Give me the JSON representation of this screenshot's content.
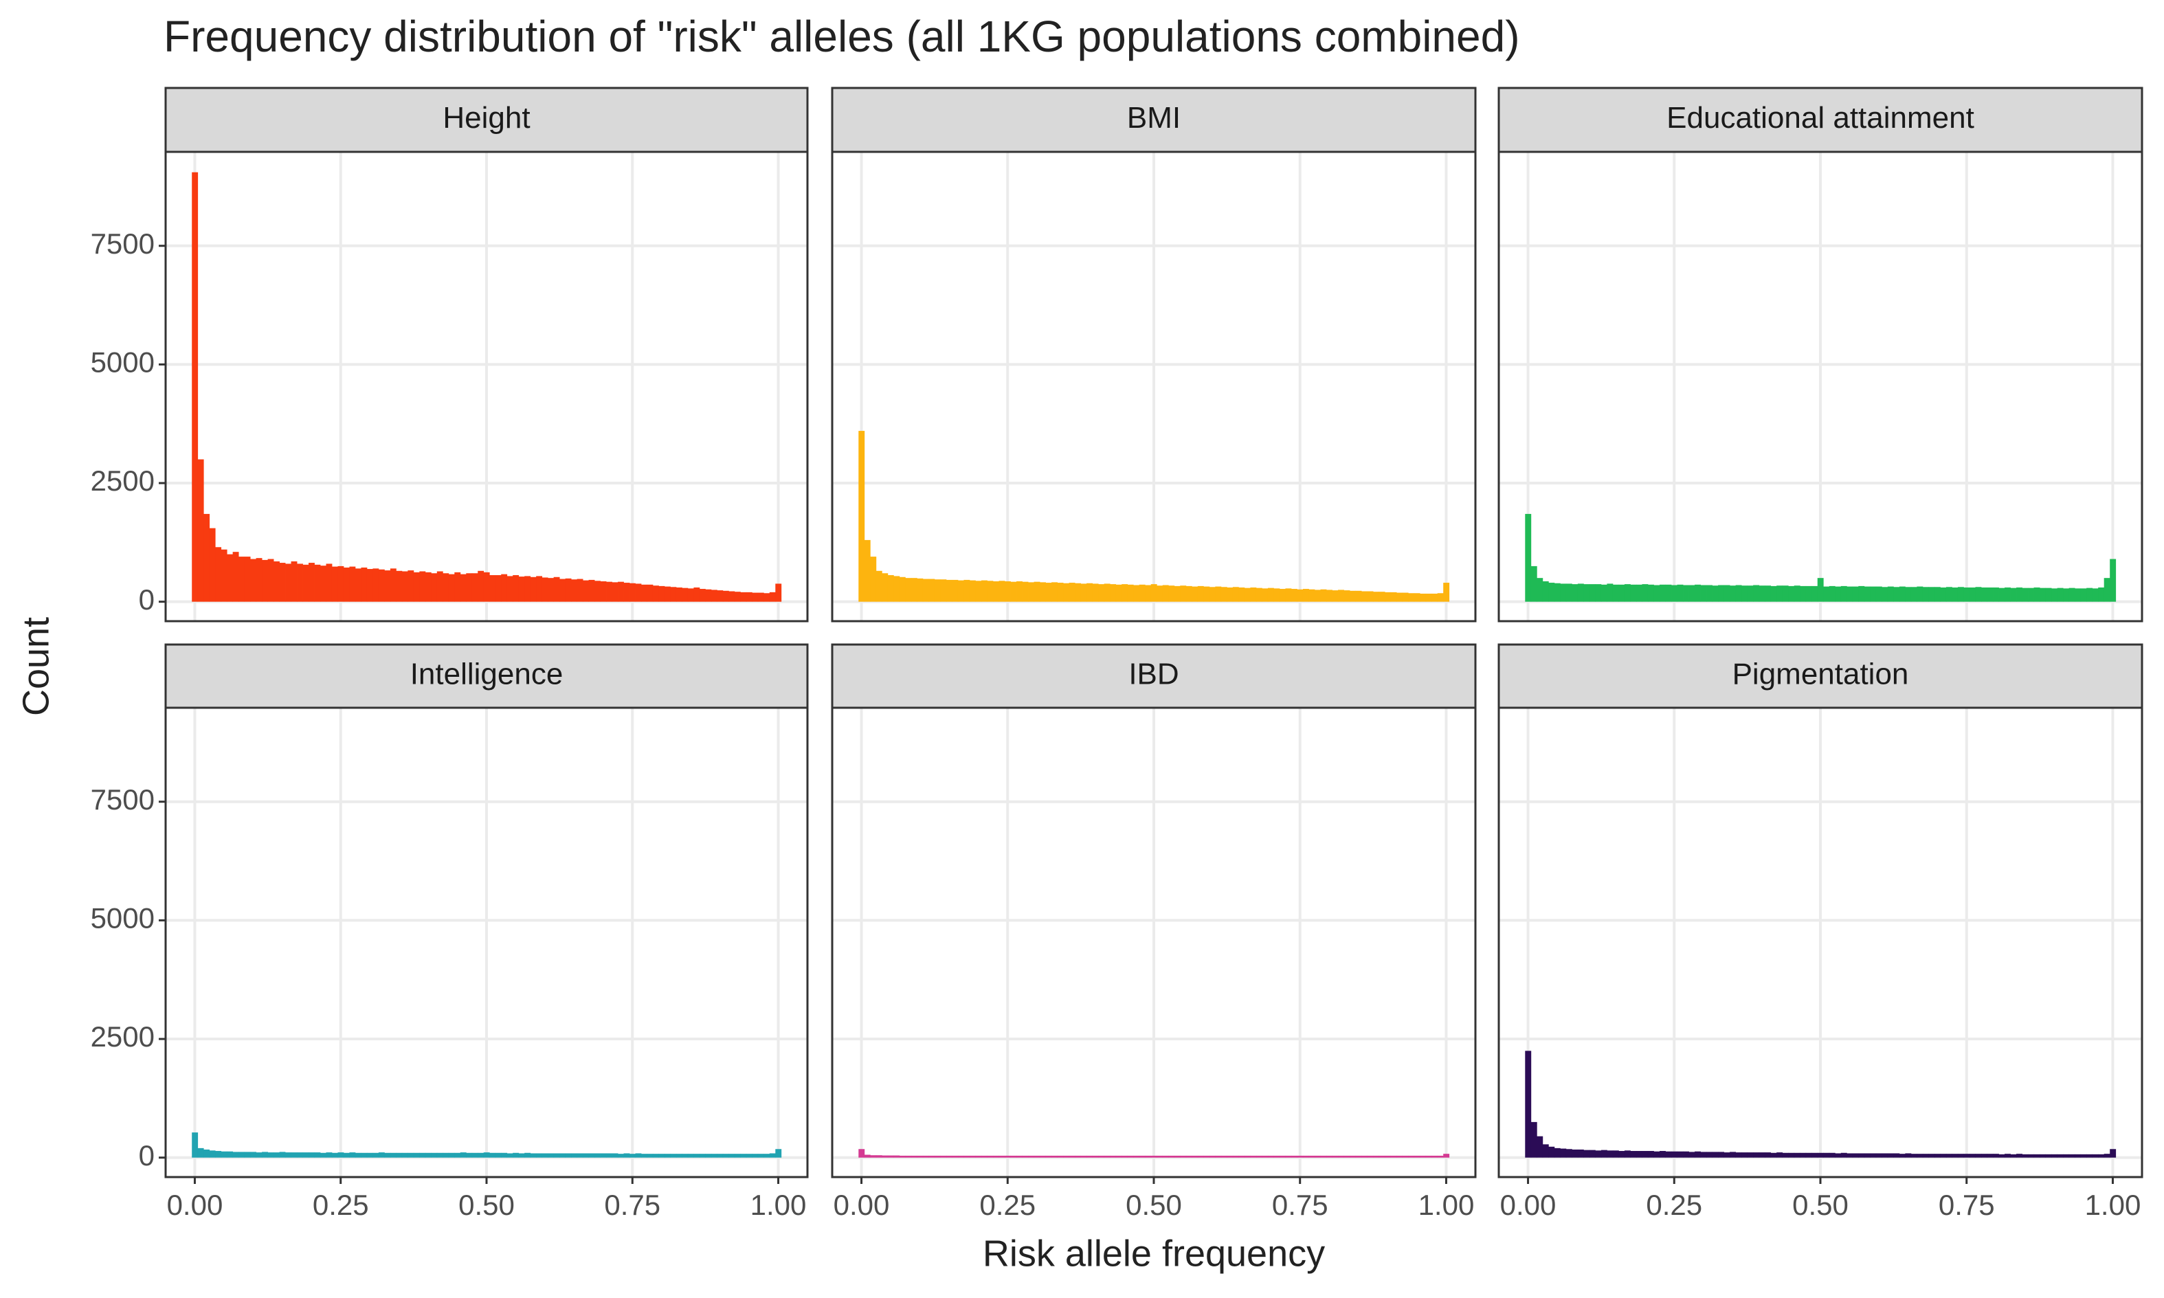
{
  "chart_data": {
    "type": "histogram",
    "title": "Frequency distribution of \"risk\" alleles (all 1KG populations combined)",
    "xlabel": "Risk allele frequency",
    "ylabel": "Count",
    "xlim": [
      -0.05,
      1.05
    ],
    "ylim": [
      -410,
      9480
    ],
    "xticks": [
      {
        "value": 0,
        "label": "0.00"
      },
      {
        "value": 0.25,
        "label": "0.25"
      },
      {
        "value": 0.5,
        "label": "0.50"
      },
      {
        "value": 0.75,
        "label": "0.75"
      },
      {
        "value": 1,
        "label": "1.00"
      }
    ],
    "yticks": [
      0,
      2500,
      5000,
      7500
    ],
    "grid": true,
    "bins": [
      -0.005,
      0.005,
      0.015,
      0.025,
      0.035,
      0.045,
      0.055,
      0.065,
      0.075,
      0.085,
      0.095,
      0.105,
      0.115,
      0.125,
      0.135,
      0.145,
      0.155,
      0.165,
      0.175,
      0.185,
      0.195,
      0.205,
      0.215,
      0.225,
      0.235,
      0.245,
      0.255,
      0.265,
      0.275,
      0.285,
      0.295,
      0.305,
      0.315,
      0.325,
      0.335,
      0.345,
      0.355,
      0.365,
      0.375,
      0.385,
      0.395,
      0.405,
      0.415,
      0.425,
      0.435,
      0.445,
      0.455,
      0.465,
      0.475,
      0.485,
      0.495,
      0.505,
      0.515,
      0.525,
      0.535,
      0.545,
      0.555,
      0.565,
      0.575,
      0.585,
      0.595,
      0.605,
      0.615,
      0.625,
      0.635,
      0.645,
      0.655,
      0.665,
      0.675,
      0.685,
      0.695,
      0.705,
      0.715,
      0.725,
      0.735,
      0.745,
      0.755,
      0.765,
      0.775,
      0.785,
      0.795,
      0.805,
      0.815,
      0.825,
      0.835,
      0.845,
      0.855,
      0.865,
      0.875,
      0.885,
      0.895,
      0.905,
      0.915,
      0.925,
      0.935,
      0.945,
      0.955,
      0.965,
      0.975,
      0.985,
      0.995,
      1.005
    ],
    "panels": [
      {
        "name": "Height",
        "color": "#f83b10",
        "values": [
          9050,
          3000,
          1850,
          1550,
          1150,
          1100,
          1000,
          1050,
          950,
          950,
          900,
          920,
          880,
          900,
          850,
          820,
          800,
          850,
          800,
          780,
          820,
          780,
          760,
          800,
          740,
          750,
          720,
          740,
          700,
          720,
          690,
          700,
          680,
          660,
          700,
          650,
          640,
          660,
          620,
          640,
          620,
          600,
          640,
          600,
          580,
          620,
          580,
          600,
          600,
          650,
          620,
          560,
          560,
          580,
          540,
          560,
          530,
          540,
          520,
          540,
          510,
          500,
          520,
          480,
          490,
          470,
          480,
          450,
          460,
          440,
          430,
          420,
          410,
          420,
          400,
          390,
          380,
          360,
          360,
          340,
          330,
          320,
          310,
          300,
          290,
          280,
          300,
          270,
          260,
          250,
          240,
          230,
          220,
          210,
          200,
          200,
          190,
          190,
          180,
          200,
          380
        ]
      },
      {
        "name": "BMI",
        "color": "#fdb40f",
        "values": [
          3600,
          1300,
          950,
          650,
          600,
          560,
          540,
          520,
          500,
          500,
          490,
          480,
          480,
          470,
          470,
          460,
          460,
          450,
          460,
          450,
          440,
          450,
          440,
          430,
          440,
          430,
          420,
          430,
          420,
          410,
          420,
          410,
          400,
          410,
          400,
          390,
          400,
          390,
          380,
          390,
          380,
          370,
          380,
          370,
          360,
          370,
          360,
          350,
          360,
          350,
          370,
          340,
          350,
          340,
          330,
          340,
          330,
          320,
          330,
          320,
          310,
          320,
          310,
          300,
          310,
          300,
          290,
          300,
          290,
          280,
          290,
          280,
          270,
          280,
          270,
          260,
          270,
          260,
          250,
          260,
          250,
          240,
          250,
          240,
          230,
          230,
          220,
          220,
          210,
          210,
          200,
          200,
          190,
          190,
          180,
          180,
          170,
          170,
          170,
          180,
          400
        ]
      },
      {
        "name": "Educational attainment",
        "color": "#1fba55",
        "values": [
          1850,
          750,
          500,
          430,
          400,
          390,
          380,
          380,
          370,
          380,
          370,
          370,
          370,
          360,
          380,
          360,
          360,
          370,
          360,
          360,
          370,
          360,
          350,
          360,
          360,
          350,
          360,
          350,
          350,
          360,
          350,
          350,
          340,
          350,
          350,
          340,
          350,
          340,
          340,
          350,
          340,
          340,
          330,
          340,
          340,
          330,
          340,
          330,
          330,
          330,
          500,
          320,
          330,
          320,
          330,
          320,
          320,
          330,
          320,
          320,
          320,
          310,
          320,
          310,
          320,
          310,
          310,
          320,
          310,
          310,
          310,
          300,
          310,
          300,
          310,
          300,
          300,
          310,
          300,
          300,
          300,
          290,
          300,
          290,
          300,
          290,
          290,
          300,
          290,
          290,
          280,
          290,
          280,
          290,
          280,
          280,
          290,
          280,
          300,
          500,
          900
        ]
      },
      {
        "name": "Intelligence",
        "color": "#21a3b1",
        "values": [
          530,
          200,
          170,
          150,
          140,
          130,
          130,
          120,
          120,
          120,
          120,
          110,
          120,
          110,
          110,
          120,
          110,
          110,
          110,
          110,
          110,
          110,
          100,
          110,
          100,
          110,
          100,
          110,
          100,
          100,
          100,
          100,
          110,
          100,
          100,
          100,
          100,
          100,
          100,
          100,
          100,
          100,
          100,
          100,
          100,
          100,
          110,
          100,
          100,
          100,
          110,
          100,
          100,
          100,
          90,
          100,
          90,
          100,
          90,
          90,
          90,
          90,
          90,
          90,
          90,
          90,
          90,
          90,
          90,
          90,
          90,
          90,
          90,
          80,
          90,
          80,
          90,
          80,
          80,
          80,
          80,
          80,
          80,
          80,
          80,
          80,
          80,
          80,
          80,
          80,
          80,
          80,
          80,
          80,
          80,
          80,
          80,
          80,
          80,
          90,
          180
        ]
      },
      {
        "name": "IBD",
        "color": "#d43a92",
        "values": [
          180,
          60,
          50,
          50,
          45,
          45,
          45,
          40,
          40,
          40,
          40,
          40,
          40,
          40,
          40,
          40,
          40,
          40,
          40,
          40,
          40,
          40,
          40,
          40,
          40,
          40,
          40,
          40,
          40,
          40,
          40,
          40,
          40,
          40,
          40,
          40,
          40,
          40,
          40,
          40,
          40,
          40,
          40,
          40,
          40,
          40,
          40,
          40,
          40,
          40,
          40,
          40,
          40,
          40,
          40,
          40,
          40,
          40,
          40,
          40,
          40,
          40,
          40,
          40,
          40,
          40,
          40,
          40,
          40,
          40,
          40,
          40,
          40,
          40,
          40,
          40,
          40,
          40,
          40,
          40,
          40,
          40,
          40,
          40,
          40,
          40,
          40,
          40,
          40,
          40,
          40,
          40,
          40,
          40,
          40,
          40,
          40,
          40,
          40,
          40,
          80
        ]
      },
      {
        "name": "Pigmentation",
        "color": "#2b0c56",
        "values": [
          2250,
          750,
          450,
          280,
          230,
          200,
          190,
          180,
          170,
          170,
          160,
          160,
          150,
          160,
          150,
          150,
          140,
          150,
          140,
          140,
          140,
          140,
          130,
          140,
          130,
          130,
          130,
          130,
          120,
          130,
          120,
          120,
          120,
          120,
          110,
          120,
          110,
          110,
          110,
          110,
          110,
          110,
          100,
          110,
          100,
          100,
          100,
          100,
          100,
          100,
          100,
          100,
          100,
          90,
          100,
          90,
          90,
          90,
          90,
          90,
          90,
          90,
          90,
          90,
          80,
          90,
          80,
          80,
          80,
          80,
          80,
          80,
          80,
          80,
          80,
          80,
          80,
          80,
          80,
          80,
          80,
          70,
          80,
          70,
          80,
          70,
          70,
          70,
          70,
          70,
          70,
          70,
          70,
          70,
          70,
          70,
          70,
          70,
          70,
          80,
          180
        ]
      }
    ]
  }
}
